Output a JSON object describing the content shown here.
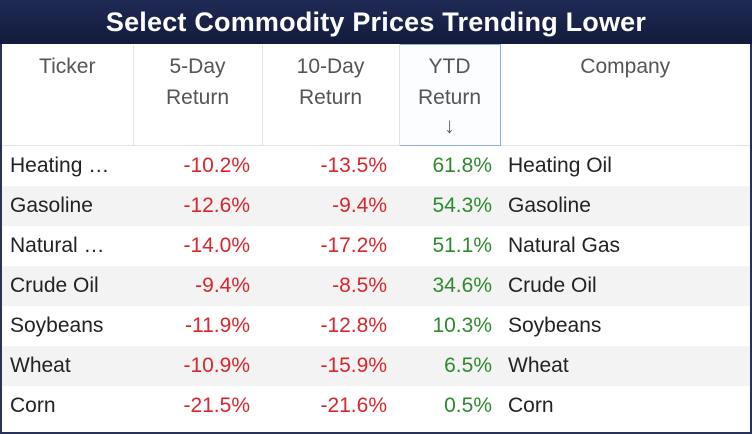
{
  "title": "Select Commodity Prices Trending Lower",
  "columns": {
    "ticker": {
      "label": "Ticker"
    },
    "five_day": {
      "line1": "5-Day",
      "line2": "Return"
    },
    "ten_day": {
      "line1": "10-Day",
      "line2": "Return"
    },
    "ytd": {
      "line1": "YTD",
      "line2": "Return",
      "sort_icon": "↓"
    },
    "company": {
      "label": "Company"
    }
  },
  "colors": {
    "negative": "#d9252b",
    "positive": "#2f8a2f",
    "title_bar": "#1a2349"
  },
  "sort": {
    "column": "ytd",
    "direction": "descending",
    "icon": "arrow-down-icon"
  },
  "rows": [
    {
      "ticker": "Heating …",
      "five_day": "-10.2%",
      "ten_day": "-13.5%",
      "ytd": "61.8%",
      "company": "Heating Oil"
    },
    {
      "ticker": "Gasoline",
      "five_day": "-12.6%",
      "ten_day": "-9.4%",
      "ytd": "54.3%",
      "company": "Gasoline"
    },
    {
      "ticker": "Natural …",
      "five_day": "-14.0%",
      "ten_day": "-17.2%",
      "ytd": "51.1%",
      "company": "Natural Gas"
    },
    {
      "ticker": "Crude Oil",
      "five_day": "-9.4%",
      "ten_day": "-8.5%",
      "ytd": "34.6%",
      "company": "Crude Oil"
    },
    {
      "ticker": "Soybeans",
      "five_day": "-11.9%",
      "ten_day": "-12.8%",
      "ytd": "10.3%",
      "company": "Soybeans"
    },
    {
      "ticker": "Wheat",
      "five_day": "-10.9%",
      "ten_day": "-15.9%",
      "ytd": "6.5%",
      "company": "Wheat"
    },
    {
      "ticker": "Corn",
      "five_day": "-21.5%",
      "ten_day": "-21.6%",
      "ytd": "0.5%",
      "company": "Corn"
    }
  ]
}
